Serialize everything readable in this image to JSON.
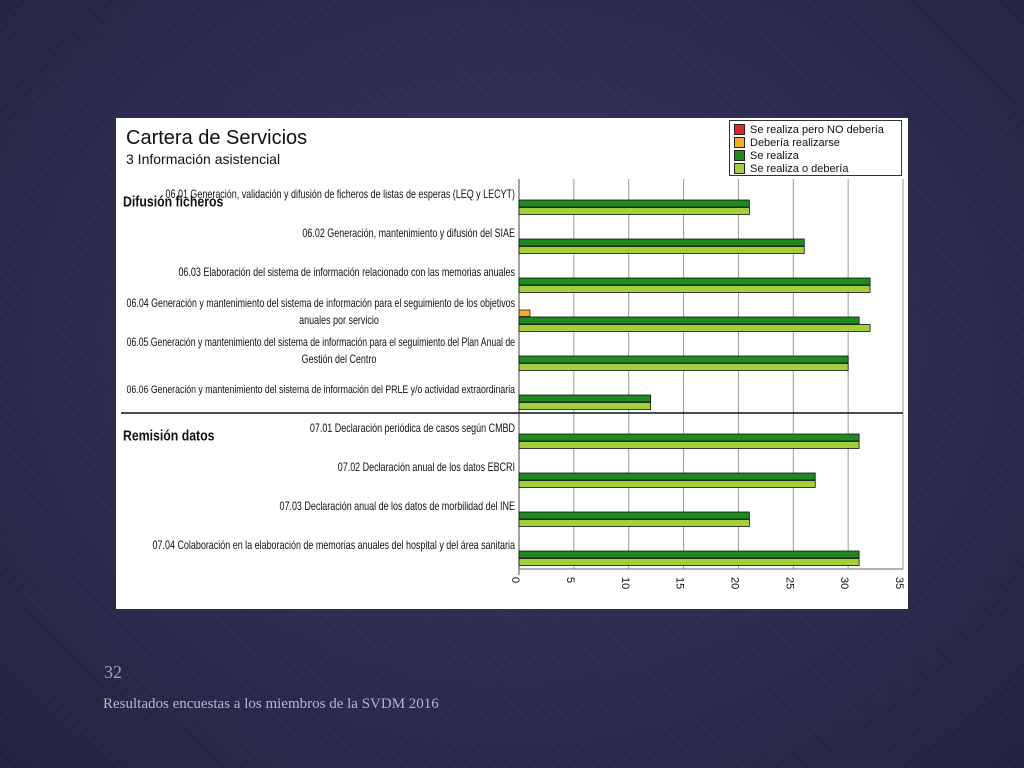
{
  "slide": {
    "number": "32",
    "footer": "Resultados encuestas a los miembros de la SVDM 2016"
  },
  "chart_data": {
    "type": "bar",
    "orientation": "horizontal",
    "title": "Cartera de Servicios",
    "subtitle": "3 Información asistencial",
    "xlim": [
      0,
      35
    ],
    "xticks": [
      0,
      5,
      10,
      15,
      20,
      25,
      30,
      35
    ],
    "grid": "vertical gridlines",
    "legend_placement": "top-right",
    "legend": [
      {
        "label": "Se realiza pero NO debería",
        "color": "#e8202a"
      },
      {
        "label": "Debería realizarse",
        "color": "#f2b021"
      },
      {
        "label": "Se realiza",
        "color": "#1f8a1f"
      },
      {
        "label": "Se realiza o debería",
        "color": "#a3cf3a"
      }
    ],
    "groups": [
      {
        "label": "Difusión ficheros",
        "first_index": 0
      },
      {
        "label": "Remisión datos",
        "first_index": 6
      }
    ],
    "categories": [
      {
        "label_lines": [
          "06.01 Generación, validación y difusión de ficheros de listas de esperas (LEQ y LECYT)"
        ]
      },
      {
        "label_lines": [
          "06.02 Generación, mantenimiento y difusión del SIAE"
        ]
      },
      {
        "label_lines": [
          "06.03 Elaboración del sistema de información relacionado con las memorias anuales"
        ]
      },
      {
        "label_lines": [
          "06.04 Generación y mantenimiento del sistema de información para el seguimiento de los objetivos",
          "anuales por servicio"
        ]
      },
      {
        "label_lines": [
          "06.05 Generación y mantenimiento del sistema de información para el seguimiento del Plan Anual de",
          "Gestión del Centro"
        ]
      },
      {
        "label_lines": [
          "06.06 Generación y mantenimiento del sistema de información del PRLE y/o actividad extraordinaria"
        ]
      },
      {
        "label_lines": [
          "07.01 Declaración periódica de casos según CMBD"
        ]
      },
      {
        "label_lines": [
          "07.02 Declaración anual de los datos EBCRI"
        ]
      },
      {
        "label_lines": [
          "07.03 Declaración anual de los datos de morbilidad del INE"
        ]
      },
      {
        "label_lines": [
          "07.04 Colaboración en la elaboración de memorias anuales del hospital y del área sanitaria"
        ]
      }
    ],
    "series": [
      {
        "name": "Se realiza pero NO debería",
        "color": "#e8202a",
        "values": [
          0,
          0,
          0,
          0,
          0,
          0,
          0,
          0,
          0,
          0
        ]
      },
      {
        "name": "Debería realizarse",
        "color": "#f2b021",
        "values": [
          0,
          0,
          0,
          1,
          0,
          0,
          0,
          0,
          0,
          0
        ]
      },
      {
        "name": "Se realiza",
        "color": "#1f8a1f",
        "values": [
          21,
          26,
          32,
          31,
          30,
          12,
          31,
          27,
          21,
          31
        ]
      },
      {
        "name": "Se realiza o debería",
        "color": "#a3cf3a",
        "values": [
          21,
          26,
          32,
          32,
          30,
          12,
          31,
          27,
          21,
          31
        ]
      }
    ]
  }
}
